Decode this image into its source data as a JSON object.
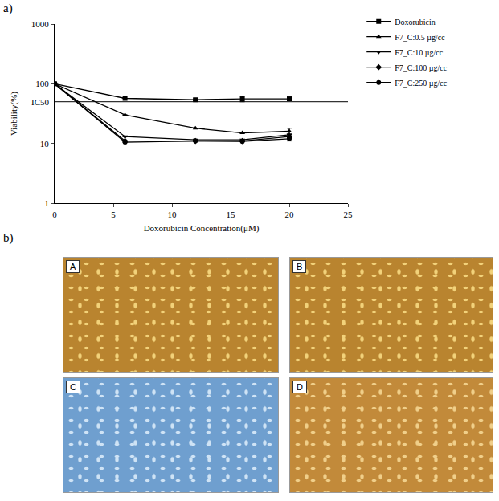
{
  "chart_data": {
    "type": "line",
    "panel_label": "a)",
    "x_label": "Doxorubicin Concentration(μM)",
    "y_label": "Viability(%)",
    "log": "y",
    "grid": false,
    "legend": "right",
    "xlim": [
      0,
      25
    ],
    "xticks": [
      0,
      5,
      10,
      15,
      20,
      25
    ],
    "ylim": [
      1,
      1000
    ],
    "yticks": [
      1,
      10,
      100,
      1000
    ],
    "x": [
      0,
      6,
      12,
      16,
      20
    ],
    "reference_line": {
      "value": 50,
      "label": "IC50"
    },
    "series": [
      {
        "name": "Doxorubicin",
        "color": "#000000",
        "marker": "square",
        "line_style": "solid",
        "values": [
          100,
          57,
          54,
          56,
          56
        ],
        "errors": [
          0,
          0,
          2,
          6,
          3
        ]
      },
      {
        "name": "F7_C:0.5 µg/cc",
        "color": "#000000",
        "marker": "triangle-up",
        "line_style": "solid",
        "values": [
          100,
          30,
          18,
          15,
          16
        ],
        "errors": [
          0,
          0,
          0,
          0,
          2
        ]
      },
      {
        "name": "F7_C:10 µg/cc",
        "color": "#000000",
        "marker": "triangle-down",
        "line_style": "solid",
        "values": [
          100,
          13,
          11.5,
          11.5,
          14
        ],
        "errors": [
          0,
          0,
          0,
          0,
          1.5
        ]
      },
      {
        "name": "F7_C:100 µg/cc",
        "color": "#000000",
        "marker": "diamond",
        "line_style": "solid",
        "values": [
          100,
          11,
          11,
          11,
          13
        ],
        "errors": [
          0,
          0,
          0,
          0,
          1
        ]
      },
      {
        "name": "F7_C:250 µg/cc",
        "color": "#000000",
        "marker": "circle",
        "line_style": "solid",
        "values": [
          100,
          10.5,
          11,
          10.8,
          12
        ],
        "errors": [
          0,
          0,
          0,
          0,
          1
        ]
      }
    ]
  },
  "images": {
    "panel_label": "b)",
    "panels": [
      "A",
      "B",
      "C",
      "D"
    ]
  }
}
